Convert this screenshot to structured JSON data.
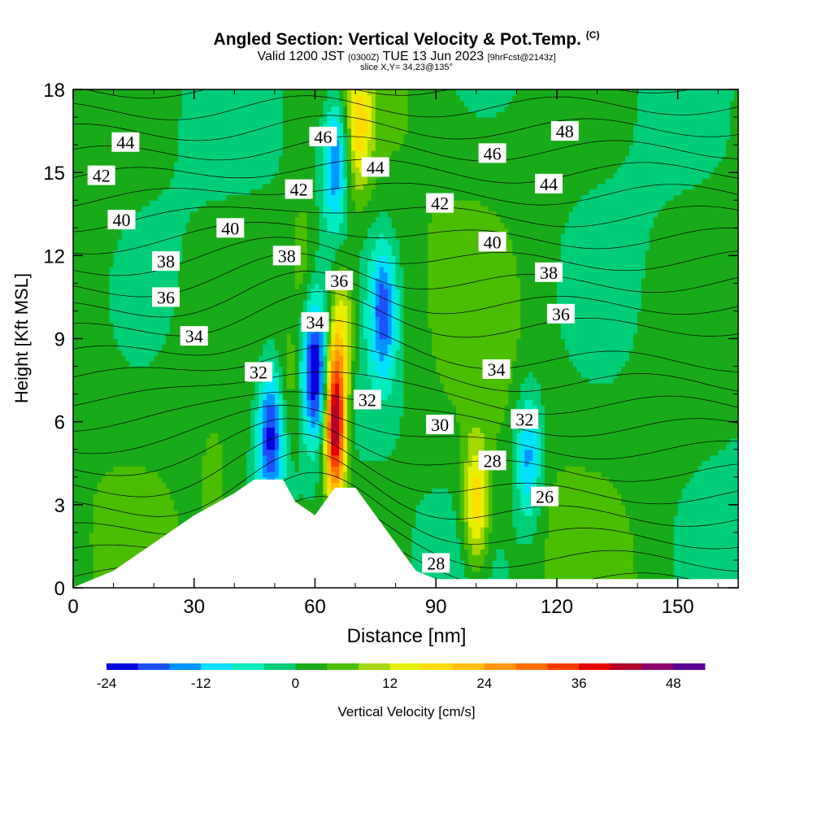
{
  "header": {
    "title": "Angled Section: Vertical Velocity & Pot.Temp.",
    "title_mark": "(C)",
    "valid_prefix": "Valid 1200 JST",
    "valid_utc": "(0300Z)",
    "valid_date": "TUE 13 Jun 2023",
    "forecast": "[9hrFcst@2143z]",
    "slice": "slice X,Y= 34,23@135°"
  },
  "chart_data": {
    "type": "heatmap",
    "title": "Angled Section: Vertical Velocity & Pot.Temp.",
    "xlabel": "Distance [nm]",
    "ylabel": "Height [Kft MSL]",
    "xlim": [
      0,
      165
    ],
    "ylim": [
      0,
      18
    ],
    "x_ticks": [
      0,
      30,
      60,
      90,
      120,
      150
    ],
    "y_ticks": [
      0,
      3,
      6,
      9,
      12,
      15,
      18
    ],
    "colorbar": {
      "label": "Vertical Velocity [cm/s]",
      "min": -24,
      "step": 4,
      "ticks": [
        -24,
        -12,
        0,
        12,
        24,
        36,
        48
      ],
      "colors": [
        "#0000e0",
        "#1e50ff",
        "#0096ff",
        "#00e1ff",
        "#00ebbe",
        "#00cd78",
        "#19aa19",
        "#4bbe00",
        "#a5d700",
        "#e6f000",
        "#ffdc00",
        "#ffbe00",
        "#ff9600",
        "#ff6e00",
        "#ff3c00",
        "#e60000",
        "#b4002d",
        "#8c006e",
        "#5a0096"
      ]
    },
    "terrain_kft": [
      [
        0,
        0
      ],
      [
        10,
        0.6
      ],
      [
        20,
        1.6
      ],
      [
        30,
        2.6
      ],
      [
        40,
        3.4
      ],
      [
        45,
        3.9
      ],
      [
        52,
        3.9
      ],
      [
        55,
        3.1
      ],
      [
        60,
        2.6
      ],
      [
        65,
        3.6
      ],
      [
        70,
        3.6
      ],
      [
        75,
        2.6
      ],
      [
        80,
        1.6
      ],
      [
        85,
        0.6
      ],
      [
        90,
        0.3
      ],
      [
        165,
        0.3
      ]
    ],
    "vertical_velocity_features": [
      {
        "x": 49,
        "y": 5.5,
        "value": -20
      },
      {
        "x": 54,
        "y": 7.5,
        "value": 8
      },
      {
        "x": 60,
        "y": 7.8,
        "value": -22
      },
      {
        "x": 65,
        "y": 6.0,
        "value": 48
      },
      {
        "x": 67,
        "y": 9.5,
        "value": 16
      },
      {
        "x": 71,
        "y": 16.5,
        "value": 16
      },
      {
        "x": 65,
        "y": 15.5,
        "value": -16
      },
      {
        "x": 77,
        "y": 10.0,
        "value": -16
      },
      {
        "x": 100,
        "y": 3.0,
        "value": 20
      },
      {
        "x": 113,
        "y": 4.8,
        "value": -14
      },
      {
        "x": 35,
        "y": 3.0,
        "value": 8
      },
      {
        "x": 57,
        "y": 12.0,
        "value": 8
      }
    ],
    "theta_contour_labels": [
      {
        "text": "44",
        "x": 13,
        "y": 16.1
      },
      {
        "text": "42",
        "x": 7,
        "y": 14.9
      },
      {
        "text": "40",
        "x": 12,
        "y": 13.3
      },
      {
        "text": "38",
        "x": 23,
        "y": 11.8
      },
      {
        "text": "36",
        "x": 23,
        "y": 10.5
      },
      {
        "text": "34",
        "x": 30,
        "y": 9.1
      },
      {
        "text": "40",
        "x": 39,
        "y": 13.0
      },
      {
        "text": "38",
        "x": 53,
        "y": 12.0
      },
      {
        "text": "42",
        "x": 56,
        "y": 14.4
      },
      {
        "text": "46",
        "x": 62,
        "y": 16.3
      },
      {
        "text": "44",
        "x": 75,
        "y": 15.2
      },
      {
        "text": "36",
        "x": 66,
        "y": 11.1
      },
      {
        "text": "34",
        "x": 60,
        "y": 9.6
      },
      {
        "text": "32",
        "x": 46,
        "y": 7.8
      },
      {
        "text": "32",
        "x": 73,
        "y": 6.8
      },
      {
        "text": "30",
        "x": 91,
        "y": 5.9
      },
      {
        "text": "28",
        "x": 104,
        "y": 4.6
      },
      {
        "text": "26",
        "x": 117,
        "y": 3.3
      },
      {
        "text": "32",
        "x": 112,
        "y": 6.1
      },
      {
        "text": "34",
        "x": 105,
        "y": 7.9
      },
      {
        "text": "36",
        "x": 121,
        "y": 9.9
      },
      {
        "text": "38",
        "x": 118,
        "y": 11.4
      },
      {
        "text": "40",
        "x": 104,
        "y": 12.5
      },
      {
        "text": "42",
        "x": 91,
        "y": 13.9
      },
      {
        "text": "44",
        "x": 118,
        "y": 14.6
      },
      {
        "text": "46",
        "x": 104,
        "y": 15.7
      },
      {
        "text": "48",
        "x": 122,
        "y": 16.5
      },
      {
        "text": "28",
        "x": 90,
        "y": 0.9
      }
    ]
  }
}
